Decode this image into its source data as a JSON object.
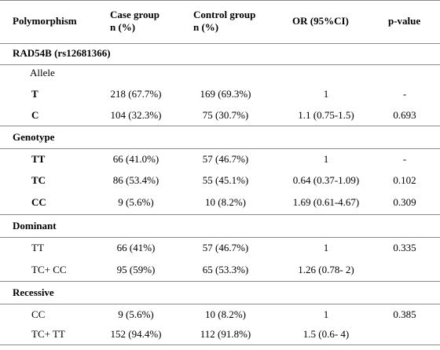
{
  "header": {
    "col1": "Polymorphism",
    "col2_line1": "Case group",
    "col2_line2": "n (%)",
    "col3_line1": "Control group",
    "col3_line2": "n (%)",
    "col4": "OR (95%CI)",
    "col5": "p-value"
  },
  "sections": {
    "gene": "RAD54B (rs12681366)",
    "allele_label": "Allele",
    "genotype": "Genotype",
    "dominant": "Dominant",
    "recessive": "Recessive"
  },
  "rows": {
    "allele_t": {
      "label": "T",
      "case": "218 (67.7%)",
      "control": "169 (69.3%)",
      "or": "1",
      "p": "-"
    },
    "allele_c": {
      "label": "C",
      "case": "104 (32.3%)",
      "control": "75 (30.7%)",
      "or": "1.1 (0.75-1.5)",
      "p": "0.693"
    },
    "geno_tt": {
      "label": "TT",
      "case": "66 (41.0%)",
      "control": "57 (46.7%)",
      "or": "1",
      "p": "-"
    },
    "geno_tc": {
      "label": "TC",
      "case": "86 (53.4%)",
      "control": "55 (45.1%)",
      "or": "0.64 (0.37-1.09)",
      "p": "0.102"
    },
    "geno_cc": {
      "label": "CC",
      "case": "9 (5.6%)",
      "control": "10 (8.2%)",
      "or": "1.69 (0.61-4.67)",
      "p": "0.309"
    },
    "dom_tt": {
      "label": "TT",
      "case": "66 (41%)",
      "control": "57 (46.7%)",
      "or": "1",
      "p": "0.335"
    },
    "dom_tccc": {
      "label": "TC+ CC",
      "case": "95 (59%)",
      "control": "65 (53.3%)",
      "or": "1.26 (0.78- 2)",
      "p": ""
    },
    "rec_cc": {
      "label": "CC",
      "case": "9 (5.6%)",
      "control": "10 (8.2%)",
      "or": "1",
      "p": "0.385"
    },
    "rec_tctt": {
      "label": "TC+ TT",
      "case": "152 (94.4%)",
      "control": "112 (91.8%)",
      "or": "1.5 (0.6- 4)",
      "p": ""
    }
  }
}
